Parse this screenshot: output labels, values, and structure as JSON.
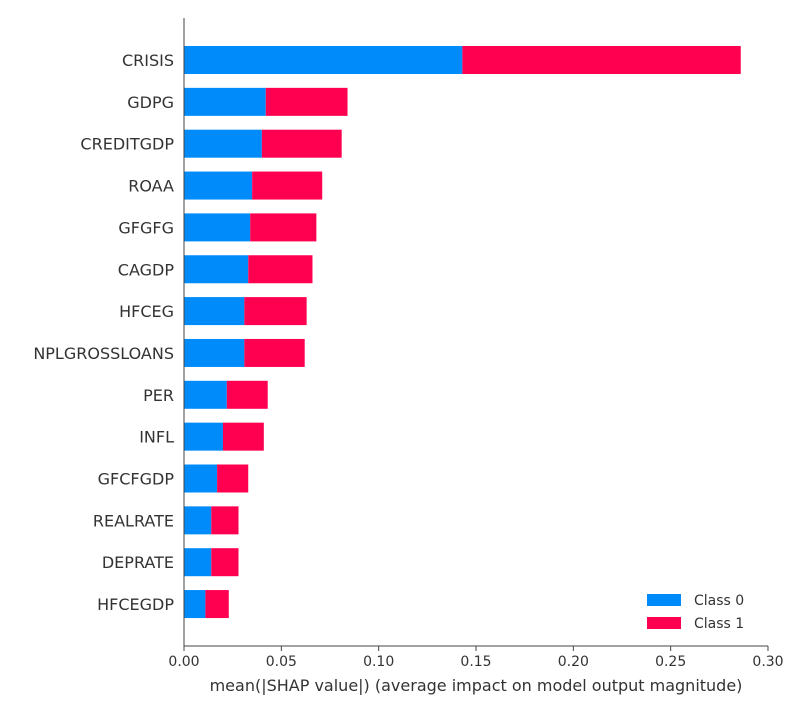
{
  "chart_data": {
    "type": "bar",
    "orientation": "horizontal",
    "stacked": true,
    "categories": [
      "CRISIS",
      "GDPG",
      "CREDITGDP",
      "ROAA",
      "GFGFG",
      "CAGDP",
      "HFCEG",
      "NPLGROSSLOANS",
      "PER",
      "INFL",
      "GFCFGDP",
      "REALRATE",
      "DEPRATE",
      "HFCEGDP"
    ],
    "series": [
      {
        "name": "Class 0",
        "color": "#008bfb",
        "values": [
          0.143,
          0.042,
          0.04,
          0.035,
          0.034,
          0.033,
          0.031,
          0.031,
          0.022,
          0.02,
          0.017,
          0.014,
          0.014,
          0.011
        ]
      },
      {
        "name": "Class 1",
        "color": "#ff0051",
        "values": [
          0.143,
          0.042,
          0.041,
          0.036,
          0.034,
          0.033,
          0.032,
          0.031,
          0.021,
          0.021,
          0.016,
          0.014,
          0.014,
          0.012
        ]
      }
    ],
    "xlabel": "mean(|SHAP value|) (average impact on model output magnitude)",
    "xlim": [
      0.0,
      0.3
    ],
    "xticks": [
      "0.00",
      "0.05",
      "0.10",
      "0.15",
      "0.20",
      "0.25",
      "0.30"
    ],
    "grid": false,
    "legend_position": "bottom-right"
  }
}
